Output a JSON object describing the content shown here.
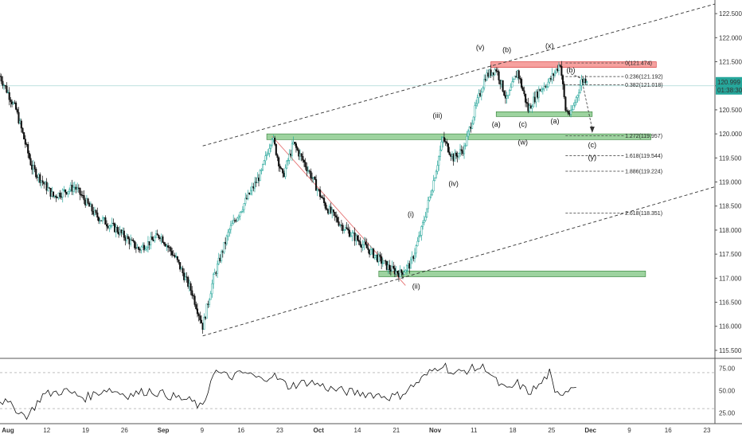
{
  "chart_data": {
    "type": "candlestick",
    "price_axis": {
      "ticks": [
        "122.500",
        "122.000",
        "121.500",
        "121.000",
        "120.500",
        "120.000",
        "119.500",
        "119.000",
        "118.500",
        "118.000",
        "117.500",
        "117.000",
        "116.500",
        "116.000",
        "115.500"
      ],
      "range": [
        115.35,
        122.75
      ],
      "current_price": "120.999",
      "countdown": "01:38:30",
      "current_color": "#26a69a"
    },
    "time_axis": {
      "labels": [
        "Aug",
        "12",
        "19",
        "26",
        "Sep",
        "9",
        "16",
        "23",
        "Oct",
        "14",
        "21",
        "Nov",
        "11",
        "18",
        "25",
        "Dec",
        "9",
        "16",
        "23"
      ],
      "bold": [
        "Aug",
        "Sep",
        "Oct",
        "Nov",
        "Dec"
      ]
    },
    "price_series": [
      {
        "x": 0,
        "y": 121.2
      },
      {
        "x": 3,
        "y": 120.5
      },
      {
        "x": 6,
        "y": 119.3
      },
      {
        "x": 10,
        "y": 118.7
      },
      {
        "x": 14,
        "y": 118.9
      },
      {
        "x": 18,
        "y": 118.3
      },
      {
        "x": 22,
        "y": 118.0
      },
      {
        "x": 26,
        "y": 117.6
      },
      {
        "x": 30,
        "y": 117.9
      },
      {
        "x": 33,
        "y": 117.4
      },
      {
        "x": 36,
        "y": 116.7
      },
      {
        "x": 38,
        "y": 116.0
      },
      {
        "x": 40,
        "y": 117.0
      },
      {
        "x": 43,
        "y": 118.0
      },
      {
        "x": 46,
        "y": 118.6
      },
      {
        "x": 49,
        "y": 119.2
      },
      {
        "x": 51,
        "y": 119.95
      },
      {
        "x": 53,
        "y": 119.1
      },
      {
        "x": 55,
        "y": 119.8
      },
      {
        "x": 58,
        "y": 119.2
      },
      {
        "x": 61,
        "y": 118.5
      },
      {
        "x": 64,
        "y": 118.1
      },
      {
        "x": 67,
        "y": 117.8
      },
      {
        "x": 70,
        "y": 117.5
      },
      {
        "x": 73,
        "y": 117.2
      },
      {
        "x": 75,
        "y": 117.1
      },
      {
        "x": 77,
        "y": 117.3
      },
      {
        "x": 79,
        "y": 118.0
      },
      {
        "x": 81,
        "y": 118.9
      },
      {
        "x": 83,
        "y": 119.9
      },
      {
        "x": 85,
        "y": 119.5
      },
      {
        "x": 87,
        "y": 119.7
      },
      {
        "x": 89,
        "y": 120.5
      },
      {
        "x": 91,
        "y": 121.2
      },
      {
        "x": 93,
        "y": 121.35
      },
      {
        "x": 95,
        "y": 120.7
      },
      {
        "x": 97,
        "y": 121.3
      },
      {
        "x": 99,
        "y": 120.5
      },
      {
        "x": 101,
        "y": 120.9
      },
      {
        "x": 103,
        "y": 121.1
      },
      {
        "x": 105,
        "y": 121.47
      },
      {
        "x": 106,
        "y": 120.5
      },
      {
        "x": 107,
        "y": 120.4
      },
      {
        "x": 109,
        "y": 121.1
      },
      {
        "x": 110,
        "y": 121.15
      }
    ],
    "channel_lines": [
      {
        "from": [
          38,
          115.8
        ],
        "to": [
          134,
          118.9
        ]
      },
      {
        "from": [
          38,
          119.75
        ],
        "to": [
          134,
          122.7
        ]
      }
    ],
    "zones": [
      {
        "y1": 120.46,
        "y2": 120.36,
        "x1": 93,
        "x2": 111,
        "kind": "support"
      },
      {
        "y1": 120.0,
        "y2": 119.88,
        "x1": 50,
        "x2": 122,
        "kind": "support"
      },
      {
        "y1": 117.15,
        "y2": 117.03,
        "x1": 71,
        "x2": 121,
        "kind": "support"
      },
      {
        "y1": 121.5,
        "y2": 121.38,
        "x1": 92,
        "x2": 123,
        "kind": "resistance"
      }
    ],
    "fib_levels": [
      {
        "label": "0(121.474)",
        "y": 121.474
      },
      {
        "label": "0.236(121.192)",
        "y": 121.192
      },
      {
        "label": "0.382(121.018)",
        "y": 121.018
      },
      {
        "label": "1.272(119.957)",
        "y": 119.957
      },
      {
        "label": "1.618(119.544)",
        "y": 119.544
      },
      {
        "label": "1.886(119.224)",
        "y": 119.224
      },
      {
        "label": "2.618(118.351)",
        "y": 118.351
      }
    ],
    "wave_labels": [
      {
        "text": "(v)",
        "x": 90,
        "y": 121.75,
        "color": "#111111"
      },
      {
        "text": "(b)",
        "x": 95,
        "y": 121.7,
        "color": "#111111"
      },
      {
        "text": "(x)",
        "x": 103,
        "y": 121.78,
        "color": "#b03030"
      },
      {
        "text": "(b)",
        "x": 107,
        "y": 121.28,
        "color": "#111111"
      },
      {
        "text": "(iii)",
        "x": 82,
        "y": 120.33,
        "color": "#111111"
      },
      {
        "text": "(a)",
        "x": 93,
        "y": 120.15,
        "color": "#111111"
      },
      {
        "text": "(c)",
        "x": 98,
        "y": 120.15,
        "color": "#111111"
      },
      {
        "text": "(a)",
        "x": 104,
        "y": 120.22,
        "color": "#111111"
      },
      {
        "text": "(w)",
        "x": 98,
        "y": 119.78,
        "color": "#b03030"
      },
      {
        "text": "(c)",
        "x": 111,
        "y": 119.72,
        "color": "#111111"
      },
      {
        "text": "(y)",
        "x": 111,
        "y": 119.46,
        "color": "#b03030"
      },
      {
        "text": "(iv)",
        "x": 85,
        "y": 118.92,
        "color": "#111111"
      },
      {
        "text": "(i)",
        "x": 77,
        "y": 118.28,
        "color": "#111111"
      },
      {
        "text": "(ii)",
        "x": 78,
        "y": 116.78,
        "color": "#111111"
      }
    ],
    "rsi": {
      "ticks": [
        "75.00",
        "50.00",
        "25.00"
      ],
      "range": [
        15,
        85
      ],
      "values": [
        {
          "x": 0,
          "y": 40
        },
        {
          "x": 3,
          "y": 30
        },
        {
          "x": 5,
          "y": 20
        },
        {
          "x": 8,
          "y": 45
        },
        {
          "x": 12,
          "y": 50
        },
        {
          "x": 16,
          "y": 42
        },
        {
          "x": 20,
          "y": 52
        },
        {
          "x": 24,
          "y": 45
        },
        {
          "x": 28,
          "y": 50
        },
        {
          "x": 32,
          "y": 44
        },
        {
          "x": 36,
          "y": 38
        },
        {
          "x": 38,
          "y": 30
        },
        {
          "x": 40,
          "y": 72
        },
        {
          "x": 43,
          "y": 65
        },
        {
          "x": 46,
          "y": 70
        },
        {
          "x": 49,
          "y": 62
        },
        {
          "x": 51,
          "y": 68
        },
        {
          "x": 54,
          "y": 55
        },
        {
          "x": 58,
          "y": 60
        },
        {
          "x": 62,
          "y": 52
        },
        {
          "x": 66,
          "y": 48
        },
        {
          "x": 70,
          "y": 46
        },
        {
          "x": 73,
          "y": 43
        },
        {
          "x": 75,
          "y": 45
        },
        {
          "x": 78,
          "y": 58
        },
        {
          "x": 81,
          "y": 72
        },
        {
          "x": 83,
          "y": 80
        },
        {
          "x": 85,
          "y": 68
        },
        {
          "x": 88,
          "y": 74
        },
        {
          "x": 91,
          "y": 76
        },
        {
          "x": 93,
          "y": 60
        },
        {
          "x": 95,
          "y": 50
        },
        {
          "x": 97,
          "y": 58
        },
        {
          "x": 99,
          "y": 48
        },
        {
          "x": 101,
          "y": 55
        },
        {
          "x": 103,
          "y": 70
        },
        {
          "x": 104,
          "y": 45
        },
        {
          "x": 106,
          "y": 50
        },
        {
          "x": 108,
          "y": 58
        }
      ]
    },
    "colors": {
      "up": "#26a69a",
      "down": "#111111",
      "channel": "#333333",
      "zone_green": "#4caf50",
      "zone_red": "#ef5350",
      "diagonal": "#e57373"
    }
  }
}
